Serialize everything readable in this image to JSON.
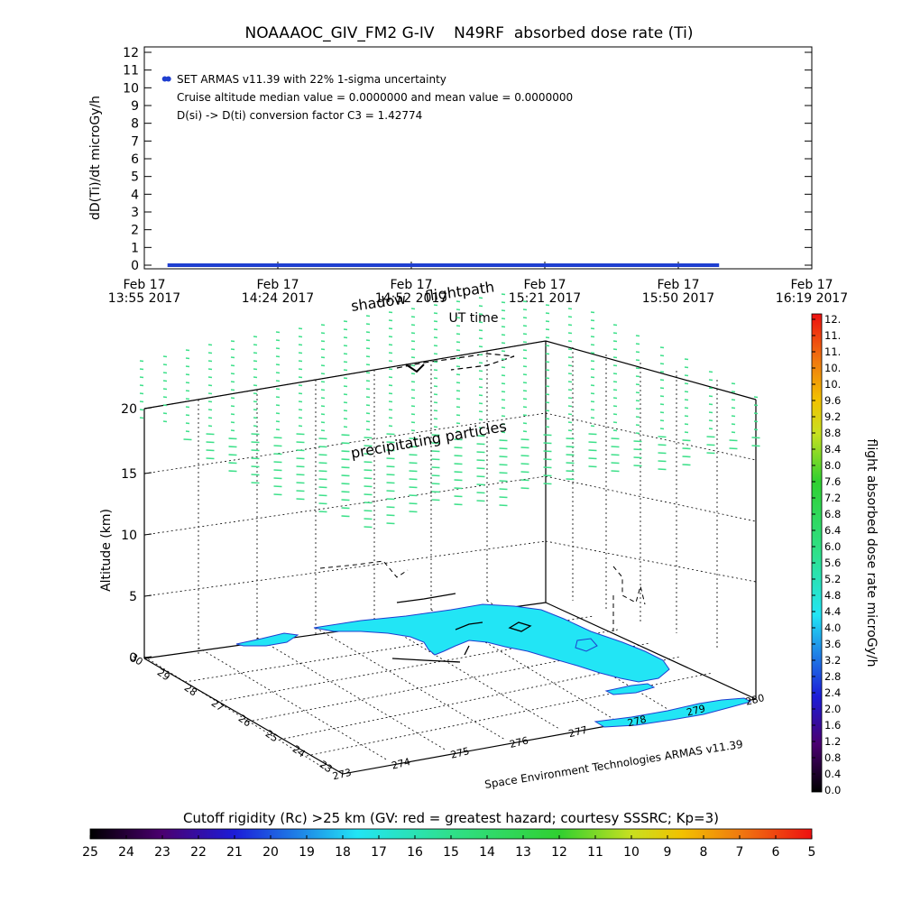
{
  "title": "NOAAAOC_GIV_FM2 G-IV    N49RF  absorbed dose rate (Ti)",
  "top_panel": {
    "ylabel": "dD(Ti)/dt microGy/h",
    "xlabel": "UT time",
    "yticks": [
      "0",
      "1",
      "2",
      "3",
      "4",
      "5",
      "6",
      "7",
      "8",
      "9",
      "10",
      "11",
      "12"
    ],
    "xticks": [
      {
        "line1": "Feb 17",
        "line2": "13:55 2017"
      },
      {
        "line1": "Feb 17",
        "line2": "14:24 2017"
      },
      {
        "line1": "Feb 17",
        "line2": "14:52 2017"
      },
      {
        "line1": "Feb 17",
        "line2": "15:21 2017"
      },
      {
        "line1": "Feb 17",
        "line2": "15:50 2017"
      },
      {
        "line1": "Feb 17",
        "line2": "16:19 2017"
      }
    ],
    "annotations": [
      "SET ARMAS v11.39 with 22% 1-sigma uncertainty",
      "Cruise altitude median value = 0.0000000 and mean value = 0.0000000",
      "D(si) -> D(ti) conversion factor C3 = 1.42774"
    ]
  },
  "three_d_panel": {
    "zlabel": "Altitude (km)",
    "zticks": [
      "0",
      "5",
      "10",
      "15",
      "20"
    ],
    "lat_ticks": [
      "23",
      "24",
      "25",
      "26",
      "27",
      "28",
      "29",
      "30"
    ],
    "lon_ticks": [
      "273",
      "274",
      "275",
      "276",
      "277",
      "278",
      "279",
      "280"
    ],
    "labels": {
      "shadow": "shadow",
      "flightpath": "flightpath",
      "precip": "precipitating particles",
      "credit": "Space Environment Technologies ARMAS v11.39"
    }
  },
  "colorbar_right": {
    "label": "flight absorbed dose rate microGy/h",
    "ticks": [
      "0.0",
      "0.4",
      "0.8",
      "1.2",
      "1.6",
      "2.0",
      "2.4",
      "2.8",
      "3.2",
      "3.6",
      "4.0",
      "4.4",
      "4.8",
      "5.2",
      "5.6",
      "6.0",
      "6.4",
      "6.8",
      "7.2",
      "7.6",
      "8.0",
      "8.4",
      "8.8",
      "9.2",
      "9.6",
      "10.",
      "10.",
      "11.",
      "11.",
      "12."
    ]
  },
  "colorbar_bottom": {
    "label": "Cutoff rigidity (Rc) >25 km (GV: red = greatest hazard; courtesy SSSRC; Kp=3)",
    "ticks": [
      "25",
      "24",
      "23",
      "22",
      "21",
      "20",
      "19",
      "18",
      "17",
      "16",
      "15",
      "14",
      "13",
      "12",
      "11",
      "10",
      "9",
      "8",
      "7",
      "6",
      "5"
    ]
  },
  "colors": {
    "series": "#1f3fd0",
    "land": "#22e5f5",
    "precip": "#3ee08a",
    "grid": "#000000"
  },
  "chart_data": [
    {
      "type": "scatter",
      "title": "NOAAAOC_GIV_FM2 G-IV    N49RF  absorbed dose rate (Ti)",
      "xlabel": "UT time",
      "ylabel": "dD(Ti)/dt microGy/h",
      "ylim": [
        0,
        12
      ],
      "xlim": [
        "2017-02-17 13:55",
        "2017-02-17 16:19"
      ],
      "x_tick_labels": [
        "13:55",
        "14:24",
        "14:52",
        "15:21",
        "15:50",
        "16:19"
      ],
      "series": [
        {
          "x": [
            "2017-02-17 14:00"
          ],
          "y": [
            10.5
          ]
        },
        {
          "x": [
            "2017-02-17 14:00",
            "2017-02-17 14:30",
            "2017-02-17 15:00",
            "2017-02-17 15:30",
            "2017-02-17 15:59"
          ],
          "y": [
            0,
            0,
            0,
            0,
            0
          ]
        }
      ]
    },
    {
      "type": "heatmap",
      "title": "",
      "zlabel": "Altitude (km)",
      "zlim": [
        0,
        20
      ],
      "lat_range": [
        23,
        30
      ],
      "lon_range": [
        273,
        280
      ]
    }
  ]
}
